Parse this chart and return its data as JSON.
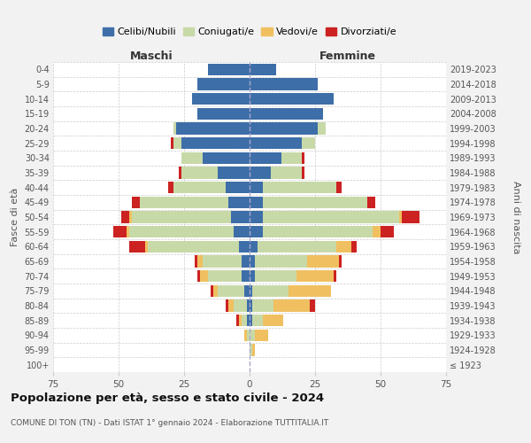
{
  "age_groups": [
    "100+",
    "95-99",
    "90-94",
    "85-89",
    "80-84",
    "75-79",
    "70-74",
    "65-69",
    "60-64",
    "55-59",
    "50-54",
    "45-49",
    "40-44",
    "35-39",
    "30-34",
    "25-29",
    "20-24",
    "15-19",
    "10-14",
    "5-9",
    "0-4"
  ],
  "birth_years": [
    "≤ 1923",
    "1924-1928",
    "1929-1933",
    "1934-1938",
    "1939-1943",
    "1944-1948",
    "1949-1953",
    "1954-1958",
    "1959-1963",
    "1964-1968",
    "1969-1973",
    "1974-1978",
    "1979-1983",
    "1984-1988",
    "1989-1993",
    "1994-1998",
    "1999-2003",
    "2004-2008",
    "2009-2013",
    "2014-2018",
    "2019-2023"
  ],
  "colors": {
    "celibi": "#3d6ea8",
    "coniugati": "#c8d9a8",
    "vedovi": "#f0c060",
    "divorziati": "#cc2222"
  },
  "maschi": {
    "celibi": [
      0,
      0,
      0,
      1,
      1,
      2,
      3,
      3,
      4,
      6,
      7,
      8,
      9,
      12,
      18,
      26,
      28,
      20,
      22,
      20,
      16
    ],
    "coniugati": [
      0,
      0,
      1,
      2,
      5,
      10,
      13,
      15,
      35,
      40,
      38,
      34,
      20,
      14,
      8,
      3,
      1,
      0,
      0,
      0,
      0
    ],
    "vedovi": [
      0,
      0,
      1,
      1,
      2,
      2,
      3,
      2,
      1,
      1,
      1,
      0,
      0,
      0,
      0,
      0,
      0,
      0,
      0,
      0,
      0
    ],
    "divorziati": [
      0,
      0,
      0,
      1,
      1,
      1,
      1,
      1,
      6,
      5,
      3,
      3,
      2,
      1,
      0,
      1,
      0,
      0,
      0,
      0,
      0
    ]
  },
  "femmine": {
    "celibi": [
      0,
      0,
      0,
      1,
      1,
      1,
      2,
      2,
      3,
      5,
      5,
      5,
      5,
      8,
      12,
      20,
      26,
      28,
      32,
      26,
      10
    ],
    "coniugati": [
      0,
      1,
      2,
      4,
      8,
      14,
      16,
      20,
      30,
      42,
      52,
      40,
      28,
      12,
      8,
      5,
      3,
      0,
      0,
      0,
      0
    ],
    "vedovi": [
      0,
      1,
      5,
      8,
      14,
      16,
      14,
      12,
      6,
      3,
      1,
      0,
      0,
      0,
      0,
      0,
      0,
      0,
      0,
      0,
      0
    ],
    "divorziati": [
      0,
      0,
      0,
      0,
      2,
      0,
      1,
      1,
      2,
      5,
      7,
      3,
      2,
      1,
      1,
      0,
      0,
      0,
      0,
      0,
      0
    ]
  },
  "xlim": 75,
  "title": "Popolazione per età, sesso e stato civile - 2024",
  "subtitle": "COMUNE DI TON (TN) - Dati ISTAT 1° gennaio 2024 - Elaborazione TUTTITALIA.IT",
  "ylabel": "Fasce di età",
  "ylabel_right": "Anni di nascita",
  "xlabel_left": "Maschi",
  "xlabel_right": "Femmine",
  "legend_labels": [
    "Celibi/Nubili",
    "Coniugati/e",
    "Vedovi/e",
    "Divorziati/e"
  ],
  "bg_color": "#f2f2f2",
  "plot_bg": "#ffffff",
  "grid_color": "#cccccc",
  "spine_color": "#cccccc"
}
